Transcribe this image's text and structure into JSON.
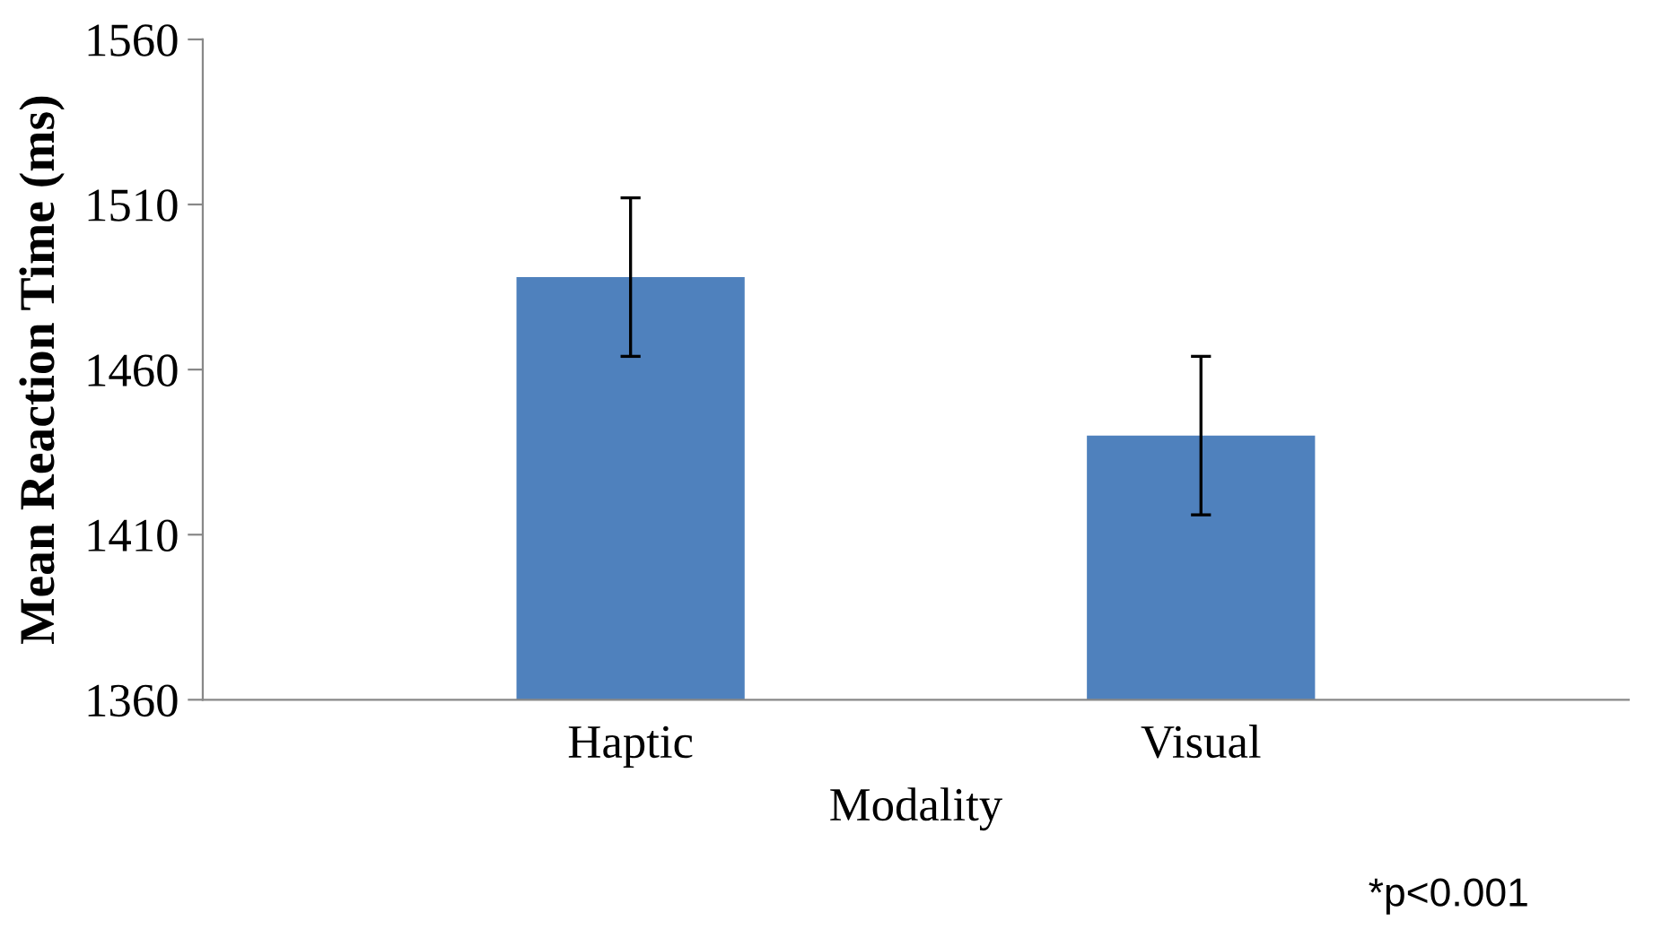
{
  "chart_data": {
    "type": "bar",
    "xlabel": "Modality",
    "ylabel": "Mean Reaction Time (ms)",
    "categories": [
      "Haptic",
      "Visual"
    ],
    "values": [
      1488,
      1440
    ],
    "errors": [
      24,
      24
    ],
    "color": "#4f81bd",
    "ylim": [
      1360,
      1560
    ],
    "yticks": [
      1360,
      1410,
      1460,
      1510,
      1560
    ],
    "grid": false,
    "legend": false,
    "annotations": [
      "*p<0.001"
    ]
  }
}
